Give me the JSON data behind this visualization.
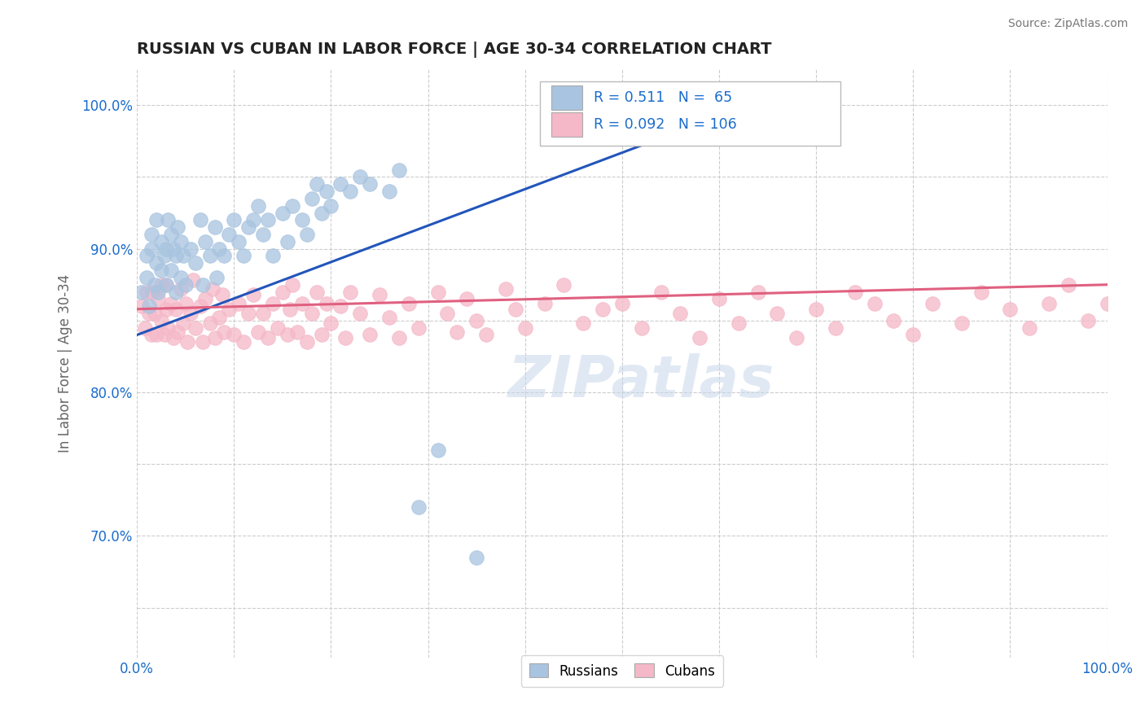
{
  "title": "RUSSIAN VS CUBAN IN LABOR FORCE | AGE 30-34 CORRELATION CHART",
  "source": "Source: ZipAtlas.com",
  "ylabel": "In Labor Force | Age 30-34",
  "xlim": [
    0.0,
    1.0
  ],
  "ylim": [
    0.615,
    1.025
  ],
  "russian_R": 0.511,
  "russian_N": 65,
  "cuban_R": 0.092,
  "cuban_N": 106,
  "russian_color": "#a8c4e0",
  "cuban_color": "#f5b8c8",
  "russian_line_color": "#2255bb",
  "cuban_line_color": "#e06080",
  "legend_label_russian": "Russians",
  "legend_label_cuban": "Cubans",
  "watermark": "ZIPatlas",
  "background_color": "#ffffff",
  "grid_color": "#cccccc",
  "title_color": "#222222",
  "russian_x": [
    0.005,
    0.01,
    0.01,
    0.012,
    0.015,
    0.015,
    0.018,
    0.02,
    0.02,
    0.022,
    0.025,
    0.025,
    0.028,
    0.03,
    0.03,
    0.032,
    0.035,
    0.035,
    0.038,
    0.04,
    0.04,
    0.042,
    0.045,
    0.045,
    0.048,
    0.05,
    0.055,
    0.06,
    0.065,
    0.068,
    0.07,
    0.075,
    0.08,
    0.082,
    0.085,
    0.09,
    0.095,
    0.1,
    0.105,
    0.11,
    0.115,
    0.12,
    0.125,
    0.13,
    0.135,
    0.14,
    0.15,
    0.155,
    0.16,
    0.17,
    0.175,
    0.18,
    0.185,
    0.19,
    0.195,
    0.2,
    0.21,
    0.22,
    0.23,
    0.24,
    0.26,
    0.27,
    0.29,
    0.31,
    0.35
  ],
  "russian_y": [
    0.87,
    0.895,
    0.88,
    0.86,
    0.9,
    0.91,
    0.875,
    0.89,
    0.92,
    0.87,
    0.885,
    0.905,
    0.895,
    0.875,
    0.9,
    0.92,
    0.885,
    0.91,
    0.9,
    0.87,
    0.895,
    0.915,
    0.88,
    0.905,
    0.895,
    0.875,
    0.9,
    0.89,
    0.92,
    0.875,
    0.905,
    0.895,
    0.915,
    0.88,
    0.9,
    0.895,
    0.91,
    0.92,
    0.905,
    0.895,
    0.915,
    0.92,
    0.93,
    0.91,
    0.92,
    0.895,
    0.925,
    0.905,
    0.93,
    0.92,
    0.91,
    0.935,
    0.945,
    0.925,
    0.94,
    0.93,
    0.945,
    0.94,
    0.95,
    0.945,
    0.94,
    0.955,
    0.72,
    0.76,
    0.685
  ],
  "cuban_x": [
    0.005,
    0.008,
    0.01,
    0.012,
    0.015,
    0.016,
    0.018,
    0.02,
    0.022,
    0.025,
    0.025,
    0.028,
    0.03,
    0.03,
    0.032,
    0.035,
    0.038,
    0.04,
    0.042,
    0.045,
    0.048,
    0.05,
    0.052,
    0.055,
    0.058,
    0.06,
    0.065,
    0.068,
    0.07,
    0.075,
    0.078,
    0.08,
    0.085,
    0.088,
    0.09,
    0.095,
    0.1,
    0.105,
    0.11,
    0.115,
    0.12,
    0.125,
    0.13,
    0.135,
    0.14,
    0.145,
    0.15,
    0.155,
    0.158,
    0.16,
    0.165,
    0.17,
    0.175,
    0.18,
    0.185,
    0.19,
    0.195,
    0.2,
    0.21,
    0.215,
    0.22,
    0.23,
    0.24,
    0.25,
    0.26,
    0.27,
    0.28,
    0.29,
    0.31,
    0.32,
    0.33,
    0.34,
    0.35,
    0.36,
    0.38,
    0.39,
    0.4,
    0.42,
    0.44,
    0.46,
    0.48,
    0.5,
    0.52,
    0.54,
    0.56,
    0.58,
    0.6,
    0.62,
    0.64,
    0.66,
    0.68,
    0.7,
    0.72,
    0.74,
    0.76,
    0.78,
    0.8,
    0.82,
    0.85,
    0.87,
    0.9,
    0.92,
    0.94,
    0.96,
    0.98,
    1.0
  ],
  "cuban_y": [
    0.86,
    0.845,
    0.87,
    0.855,
    0.84,
    0.87,
    0.855,
    0.84,
    0.865,
    0.85,
    0.875,
    0.84,
    0.858,
    0.875,
    0.845,
    0.862,
    0.838,
    0.858,
    0.842,
    0.872,
    0.848,
    0.862,
    0.835,
    0.855,
    0.878,
    0.845,
    0.86,
    0.835,
    0.865,
    0.848,
    0.872,
    0.838,
    0.852,
    0.868,
    0.842,
    0.858,
    0.84,
    0.862,
    0.835,
    0.855,
    0.868,
    0.842,
    0.855,
    0.838,
    0.862,
    0.845,
    0.87,
    0.84,
    0.858,
    0.875,
    0.842,
    0.862,
    0.835,
    0.855,
    0.87,
    0.84,
    0.862,
    0.848,
    0.86,
    0.838,
    0.87,
    0.855,
    0.84,
    0.868,
    0.852,
    0.838,
    0.862,
    0.845,
    0.87,
    0.855,
    0.842,
    0.865,
    0.85,
    0.84,
    0.872,
    0.858,
    0.845,
    0.862,
    0.875,
    0.848,
    0.858,
    0.862,
    0.845,
    0.87,
    0.855,
    0.838,
    0.865,
    0.848,
    0.87,
    0.855,
    0.838,
    0.858,
    0.845,
    0.87,
    0.862,
    0.85,
    0.84,
    0.862,
    0.848,
    0.87,
    0.858,
    0.845,
    0.862,
    0.875,
    0.85,
    0.862
  ]
}
